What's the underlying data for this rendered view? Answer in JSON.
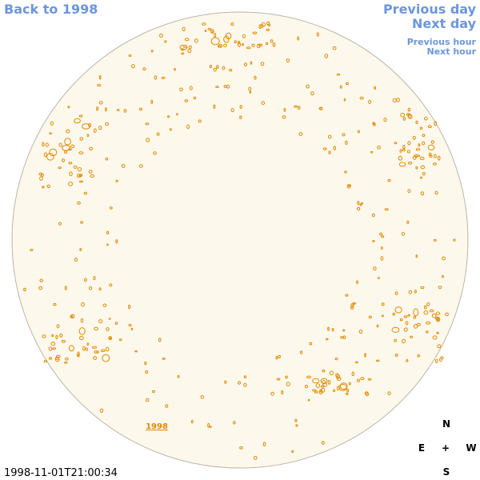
{
  "nav": {
    "back": "Back to 1998",
    "previous_day": "Previous day",
    "next_day": "Next day",
    "previous_hour": "Previous hour",
    "next_hour": "Next hour"
  },
  "image": {
    "year_label": "1998",
    "timestamp": "1998-11-01T21:00:34"
  },
  "compass": {
    "north": "N",
    "east": "E",
    "center": "+",
    "west": "W",
    "south": "S"
  }
}
